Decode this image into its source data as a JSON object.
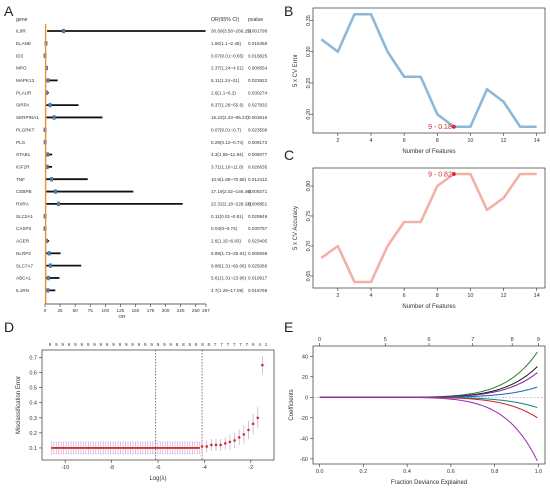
{
  "panels": {
    "a": "A",
    "b": "B",
    "c": "C",
    "d": "D",
    "e": "E"
  },
  "chart_data": [
    {
      "id": "A",
      "type": "forest",
      "headers": {
        "gene": "gene",
        "or": "OR(95% CI)",
        "p": "pvalue"
      },
      "xlabel": "OR",
      "xticks": [
        "0",
        "25",
        "50",
        "75",
        "100",
        "125",
        "150",
        "175",
        "200",
        "225",
        "250",
        "267"
      ],
      "xlim": [
        0,
        267
      ],
      "rows": [
        {
          "gene": "IL8R",
          "or": 30.89,
          "lo": 3.58,
          "hi": 266.25,
          "label": "30.89(3.58~266.25)",
          "p": "0.001798"
        },
        {
          "gene": "ELANE",
          "or": 1.66,
          "lo": 1.1,
          "hi": 2.49,
          "label": "1.66(1.1~2.49)",
          "p": "0.015456"
        },
        {
          "gene": "ID3",
          "or": 0.07,
          "lo": 0.01,
          "hi": 0.65,
          "label": "0.07(0.01~0.65)",
          "p": "0.018825"
        },
        {
          "gene": "MPO",
          "or": 2.37,
          "lo": 1.24,
          "hi": 4.51,
          "label": "2.37(1.24~4.51)",
          "p": "0.008654"
        },
        {
          "gene": "MAPK13",
          "or": 5.11,
          "lo": 1.24,
          "hi": 21,
          "label": "5.11(1.24~21)",
          "p": "0.023822"
        },
        {
          "gene": "PLAUR",
          "or": 2.6,
          "lo": 1.1,
          "hi": 6.2,
          "label": "2.6(1.1~6.2)",
          "p": "0.030274"
        },
        {
          "gene": "SIRPA",
          "or": 8.37,
          "lo": 1.26,
          "hi": 55.6,
          "label": "8.37(1.26~55.6)",
          "p": "0.027832"
        },
        {
          "gene": "SERPINA1",
          "or": 15.22,
          "lo": 2.43,
          "hi": 95.23,
          "label": "15.22(2.43~95.23)",
          "p": "0.003616"
        },
        {
          "gene": "PLGRKT",
          "or": 0.07,
          "lo": 0.01,
          "hi": 0.7,
          "label": "0.07(0.01~0.7)",
          "p": "0.023509"
        },
        {
          "gene": "PLG",
          "or": 0.29,
          "lo": 0.12,
          "hi": 0.74,
          "label": "0.29(0.12~0.74)",
          "p": "0.009173"
        },
        {
          "gene": "STAB1",
          "or": 4.3,
          "lo": 1.55,
          "hi": 11.94,
          "label": "4.3(1.55~11.94)",
          "p": "0.005077"
        },
        {
          "gene": "IGF2R",
          "or": 3.71,
          "lo": 1.16,
          "hi": 11.8,
          "label": "3.71(1.16~11.8)",
          "p": "0.026635"
        },
        {
          "gene": "TNF",
          "or": 10.9,
          "lo": 1.68,
          "hi": 70.88,
          "label": "10.9(1.68~70.88)",
          "p": "0.012412"
        },
        {
          "gene": "CEBPB",
          "or": 17.19,
          "lo": 2.02,
          "hi": 146.46,
          "label": "17.19(2.02~146.46)",
          "p": "0.009271"
        },
        {
          "gene": "RXRA",
          "or": 22.32,
          "lo": 2.18,
          "hi": 228.32,
          "label": "22.32(2.18~228.32)",
          "p": "0.008851"
        },
        {
          "gene": "SLC2A1",
          "or": 0.11,
          "lo": 0.01,
          "hi": 0.81,
          "label": "0.11(0.01~0.81)",
          "p": "0.029949"
        },
        {
          "gene": "CASP3",
          "or": 0.04,
          "lo": 0,
          "hi": 0.74,
          "label": "0.04(0~0.74)",
          "p": "0.030757"
        },
        {
          "gene": "AGER",
          "or": 2.6,
          "lo": 1.15,
          "hi": 6.83,
          "label": "2.6(1.15~6.83)",
          "p": "0.023405"
        },
        {
          "gene": "NLRP3",
          "or": 6.89,
          "lo": 1.73,
          "hi": 25.91,
          "label": "6.89(1.73~25.91)",
          "p": "0.005938"
        },
        {
          "gene": "SLC7A7",
          "or": 8.88,
          "lo": 1.31,
          "hi": 60.06,
          "label": "8.88(1.31~60.06)",
          "p": "0.025066"
        },
        {
          "gene": "ABCA1",
          "or": 5.61,
          "lo": 1.31,
          "hi": 23.96,
          "label": "5.61(1.31~23.96)",
          "p": "0.019917"
        },
        {
          "gene": "IL1RN",
          "or": 4.7,
          "lo": 1.29,
          "hi": 17.09,
          "label": "4.7(1.29~17.09)",
          "p": "0.018768"
        }
      ]
    },
    {
      "id": "B",
      "type": "line",
      "xlabel": "Number of Features",
      "ylabel": "5 x CV Error",
      "x": [
        1,
        2,
        3,
        4,
        5,
        6,
        7,
        8,
        9,
        10,
        11,
        12,
        13,
        14
      ],
      "y": [
        0.32,
        0.3,
        0.36,
        0.36,
        0.3,
        0.26,
        0.26,
        0.2,
        0.18,
        0.18,
        0.24,
        0.22,
        0.18,
        0.18
      ],
      "xticks": [
        "2",
        "4",
        "6",
        "8",
        "10",
        "12",
        "14"
      ],
      "yticks": [
        "0.20",
        "0.25",
        "0.30",
        "0.35"
      ],
      "xlim": [
        0.5,
        14.5
      ],
      "ylim": [
        0.17,
        0.37
      ],
      "annotation": {
        "text": "9 - 0.18",
        "x": 9,
        "y": 0.18
      },
      "color": "#8cb8d8"
    },
    {
      "id": "C",
      "type": "line",
      "xlabel": "Number of Features",
      "ylabel": "5 x CV Accuracy",
      "x": [
        1,
        2,
        3,
        4,
        5,
        6,
        7,
        8,
        9,
        10,
        11,
        12,
        13,
        14
      ],
      "y": [
        0.68,
        0.7,
        0.64,
        0.64,
        0.7,
        0.74,
        0.74,
        0.8,
        0.82,
        0.82,
        0.76,
        0.78,
        0.82,
        0.82
      ],
      "xticks": [
        "2",
        "4",
        "6",
        "8",
        "10",
        "12",
        "14"
      ],
      "yticks": [
        "0.65",
        "0.70",
        "0.75",
        "0.80"
      ],
      "xlim": [
        0.5,
        14.5
      ],
      "ylim": [
        0.63,
        0.83
      ],
      "annotation": {
        "text": "9 - 0.82",
        "x": 9,
        "y": 0.82
      },
      "color": "#f4b0a6"
    },
    {
      "id": "D",
      "type": "errorbar-scatter",
      "xlabel": "Log(λ)",
      "ylabel": "Misclassification Error",
      "xticks": [
        "-10",
        "-8",
        "-6",
        "-4",
        "-2"
      ],
      "yticks": [
        "0.1",
        "0.2",
        "0.3",
        "0.4",
        "0.5",
        "0.6",
        "0.7"
      ],
      "xlim": [
        -11,
        -1
      ],
      "ylim": [
        0.02,
        0.75
      ],
      "top_axis_labels": [
        "9",
        "9",
        "9",
        "9",
        "9",
        "9",
        "9",
        "9",
        "9",
        "9",
        "9",
        "9",
        "9",
        "9",
        "9",
        "9",
        "9",
        "9",
        "9",
        "9",
        "8",
        "8",
        "8",
        "8",
        "8",
        "8",
        "7",
        "7",
        "7",
        "7",
        "7",
        "7",
        "6",
        "4",
        "1"
      ],
      "vlines": [
        -6.1,
        -4.1
      ],
      "flat_segment": {
        "x_from": -10.6,
        "x_to": -4.2,
        "y": 0.1,
        "lo": 0.06,
        "hi": 0.14
      },
      "tail": {
        "x": [
          -4.1,
          -3.9,
          -3.7,
          -3.5,
          -3.3,
          -3.1,
          -2.9,
          -2.7,
          -2.5,
          -2.3,
          -2.1,
          -1.9,
          -1.7,
          -1.5
        ],
        "y": [
          0.11,
          0.11,
          0.12,
          0.12,
          0.12,
          0.13,
          0.14,
          0.15,
          0.17,
          0.19,
          0.22,
          0.26,
          0.3,
          0.65
        ],
        "err": [
          0.04,
          0.04,
          0.04,
          0.04,
          0.04,
          0.04,
          0.05,
          0.05,
          0.05,
          0.06,
          0.06,
          0.07,
          0.07,
          0.06
        ]
      },
      "point_color": "#c0392b",
      "bar_color": "#d9a6d9"
    },
    {
      "id": "E",
      "type": "line",
      "xlabel": "Fraction Deviance Explained",
      "ylabel": "Coefficients",
      "xticks": [
        "0.0",
        "0.2",
        "0.4",
        "0.6",
        "0.8",
        "1.0"
      ],
      "yticks": [
        "-60",
        "-40",
        "-20",
        "0",
        "20",
        "40"
      ],
      "top_axis_labels": [
        "0",
        "5",
        "6",
        "7",
        "8",
        "9"
      ],
      "top_axis_positions": [
        0.0,
        0.3,
        0.5,
        0.7,
        0.88,
        1.0
      ],
      "xlim": [
        -0.03,
        1.03
      ],
      "ylim": [
        -65,
        50
      ],
      "series": [
        {
          "end": 44,
          "color": "#2e7d32"
        },
        {
          "end": 30,
          "color": "#1a1a1a"
        },
        {
          "end": 24,
          "color": "#7b1fa2"
        },
        {
          "end": 10,
          "color": "#1565c0"
        },
        {
          "end": -10,
          "color": "#00897b"
        },
        {
          "end": -20,
          "color": "#c62828"
        },
        {
          "end": -62,
          "color": "#9c27b0"
        }
      ]
    }
  ]
}
